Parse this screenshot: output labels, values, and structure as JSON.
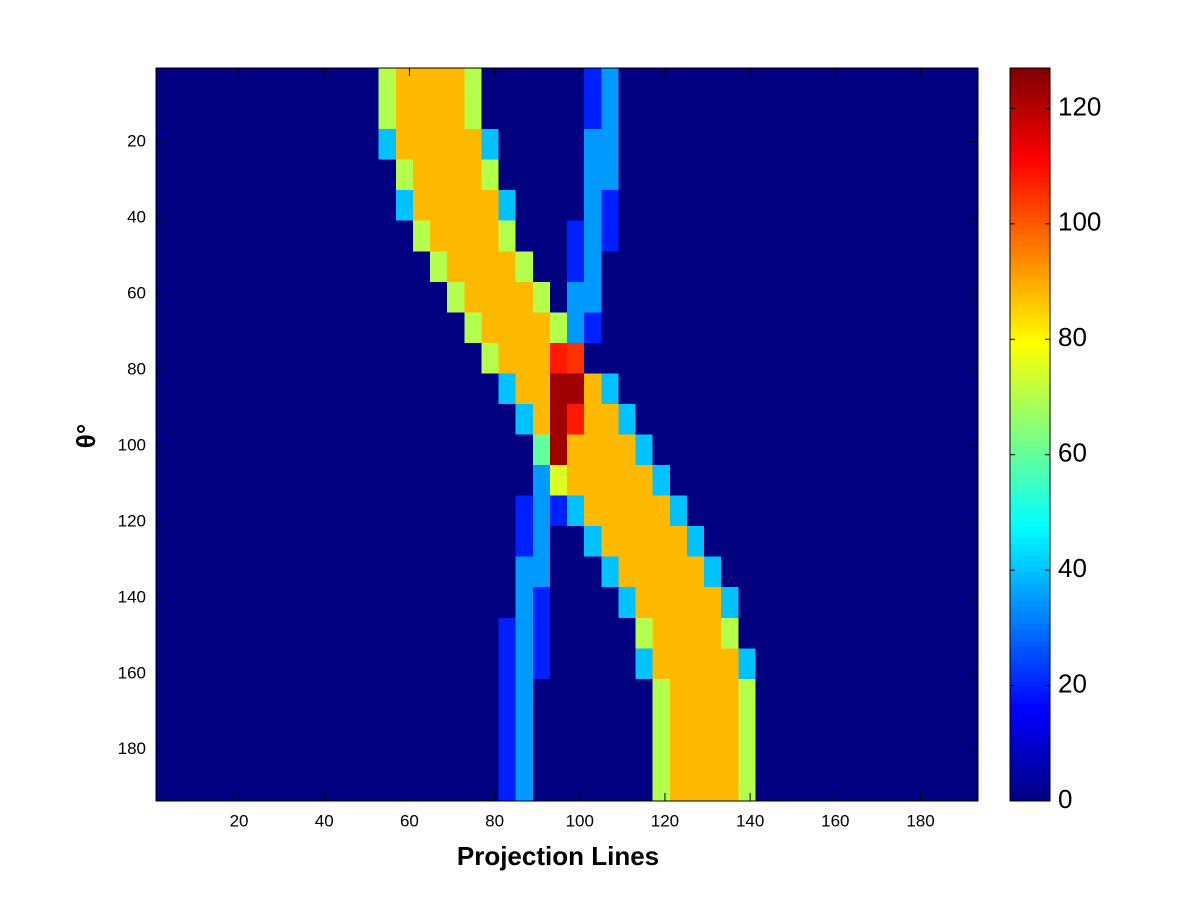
{
  "chart_data": {
    "type": "heatmap",
    "xlabel": "Projection Lines",
    "ylabel": "θ°",
    "colormap": "jet",
    "clim": [
      0,
      127
    ],
    "cticks": [
      0,
      20,
      40,
      60,
      80,
      100,
      120
    ],
    "xlim": [
      0.5,
      193.5
    ],
    "ylim": [
      0.5,
      193.5
    ],
    "y_reversed": true,
    "xticks": [
      20,
      40,
      60,
      80,
      100,
      120,
      140,
      160,
      180
    ],
    "yticks": [
      20,
      40,
      60,
      80,
      100,
      120,
      140,
      160,
      180
    ],
    "values": [
      [
        0,
        0,
        0,
        0,
        0,
        0,
        0,
        0,
        0,
        0,
        0,
        0,
        0,
        70,
        88,
        88,
        88,
        88,
        70,
        0,
        0,
        0,
        0,
        0,
        0,
        20,
        35,
        0,
        0,
        0,
        0,
        0,
        0,
        0,
        0,
        0,
        0,
        0,
        0,
        0,
        0,
        0,
        0,
        0,
        0,
        0,
        0,
        0
      ],
      [
        0,
        0,
        0,
        0,
        0,
        0,
        0,
        0,
        0,
        0,
        0,
        0,
        0,
        70,
        88,
        88,
        88,
        88,
        70,
        0,
        0,
        0,
        0,
        0,
        0,
        20,
        35,
        0,
        0,
        0,
        0,
        0,
        0,
        0,
        0,
        0,
        0,
        0,
        0,
        0,
        0,
        0,
        0,
        0,
        0,
        0,
        0,
        0
      ],
      [
        0,
        0,
        0,
        0,
        0,
        0,
        0,
        0,
        0,
        0,
        0,
        0,
        0,
        40,
        88,
        88,
        88,
        88,
        88,
        40,
        0,
        0,
        0,
        0,
        0,
        35,
        35,
        0,
        0,
        0,
        0,
        0,
        0,
        0,
        0,
        0,
        0,
        0,
        0,
        0,
        0,
        0,
        0,
        0,
        0,
        0,
        0,
        0
      ],
      [
        0,
        0,
        0,
        0,
        0,
        0,
        0,
        0,
        0,
        0,
        0,
        0,
        0,
        0,
        70,
        88,
        88,
        88,
        88,
        70,
        0,
        0,
        0,
        0,
        0,
        35,
        35,
        0,
        0,
        0,
        0,
        0,
        0,
        0,
        0,
        0,
        0,
        0,
        0,
        0,
        0,
        0,
        0,
        0,
        0,
        0,
        0,
        0
      ],
      [
        0,
        0,
        0,
        0,
        0,
        0,
        0,
        0,
        0,
        0,
        0,
        0,
        0,
        0,
        40,
        88,
        88,
        88,
        88,
        88,
        40,
        0,
        0,
        0,
        0,
        35,
        20,
        0,
        0,
        0,
        0,
        0,
        0,
        0,
        0,
        0,
        0,
        0,
        0,
        0,
        0,
        0,
        0,
        0,
        0,
        0,
        0,
        0
      ],
      [
        0,
        0,
        0,
        0,
        0,
        0,
        0,
        0,
        0,
        0,
        0,
        0,
        0,
        0,
        0,
        70,
        88,
        88,
        88,
        88,
        70,
        0,
        0,
        0,
        20,
        35,
        20,
        0,
        0,
        0,
        0,
        0,
        0,
        0,
        0,
        0,
        0,
        0,
        0,
        0,
        0,
        0,
        0,
        0,
        0,
        0,
        0,
        0
      ],
      [
        0,
        0,
        0,
        0,
        0,
        0,
        0,
        0,
        0,
        0,
        0,
        0,
        0,
        0,
        0,
        0,
        70,
        88,
        88,
        88,
        88,
        70,
        0,
        0,
        20,
        35,
        0,
        0,
        0,
        0,
        0,
        0,
        0,
        0,
        0,
        0,
        0,
        0,
        0,
        0,
        0,
        0,
        0,
        0,
        0,
        0,
        0,
        0
      ],
      [
        0,
        0,
        0,
        0,
        0,
        0,
        0,
        0,
        0,
        0,
        0,
        0,
        0,
        0,
        0,
        0,
        0,
        70,
        88,
        88,
        88,
        88,
        70,
        0,
        35,
        35,
        0,
        0,
        0,
        0,
        0,
        0,
        0,
        0,
        0,
        0,
        0,
        0,
        0,
        0,
        0,
        0,
        0,
        0,
        0,
        0,
        0,
        0
      ],
      [
        0,
        0,
        0,
        0,
        0,
        0,
        0,
        0,
        0,
        0,
        0,
        0,
        0,
        0,
        0,
        0,
        0,
        0,
        70,
        88,
        88,
        88,
        88,
        70,
        35,
        20,
        0,
        0,
        0,
        0,
        0,
        0,
        0,
        0,
        0,
        0,
        0,
        0,
        0,
        0,
        0,
        0,
        0,
        0,
        0,
        0,
        0,
        0
      ],
      [
        0,
        0,
        0,
        0,
        0,
        0,
        0,
        0,
        0,
        0,
        0,
        0,
        0,
        0,
        0,
        0,
        0,
        0,
        0,
        70,
        88,
        88,
        88,
        108,
        105,
        0,
        0,
        0,
        0,
        0,
        0,
        0,
        0,
        0,
        0,
        0,
        0,
        0,
        0,
        0,
        0,
        0,
        0,
        0,
        0,
        0,
        0,
        0
      ],
      [
        0,
        0,
        0,
        0,
        0,
        0,
        0,
        0,
        0,
        0,
        0,
        0,
        0,
        0,
        0,
        0,
        0,
        0,
        0,
        0,
        40,
        88,
        88,
        123,
        123,
        88,
        40,
        0,
        0,
        0,
        0,
        0,
        0,
        0,
        0,
        0,
        0,
        0,
        0,
        0,
        0,
        0,
        0,
        0,
        0,
        0,
        0,
        0
      ],
      [
        0,
        0,
        0,
        0,
        0,
        0,
        0,
        0,
        0,
        0,
        0,
        0,
        0,
        0,
        0,
        0,
        0,
        0,
        0,
        0,
        0,
        40,
        88,
        123,
        108,
        88,
        88,
        40,
        0,
        0,
        0,
        0,
        0,
        0,
        0,
        0,
        0,
        0,
        0,
        0,
        0,
        0,
        0,
        0,
        0,
        0,
        0,
        0
      ],
      [
        0,
        0,
        0,
        0,
        0,
        0,
        0,
        0,
        0,
        0,
        0,
        0,
        0,
        0,
        0,
        0,
        0,
        0,
        0,
        0,
        0,
        0,
        60,
        123,
        88,
        88,
        88,
        88,
        40,
        0,
        0,
        0,
        0,
        0,
        0,
        0,
        0,
        0,
        0,
        0,
        0,
        0,
        0,
        0,
        0,
        0,
        0,
        0
      ],
      [
        0,
        0,
        0,
        0,
        0,
        0,
        0,
        0,
        0,
        0,
        0,
        0,
        0,
        0,
        0,
        0,
        0,
        0,
        0,
        0,
        0,
        0,
        35,
        75,
        88,
        88,
        88,
        88,
        88,
        40,
        0,
        0,
        0,
        0,
        0,
        0,
        0,
        0,
        0,
        0,
        0,
        0,
        0,
        0,
        0,
        0,
        0,
        0
      ],
      [
        0,
        0,
        0,
        0,
        0,
        0,
        0,
        0,
        0,
        0,
        0,
        0,
        0,
        0,
        0,
        0,
        0,
        0,
        0,
        0,
        0,
        20,
        35,
        20,
        40,
        88,
        88,
        88,
        88,
        88,
        40,
        0,
        0,
        0,
        0,
        0,
        0,
        0,
        0,
        0,
        0,
        0,
        0,
        0,
        0,
        0,
        0,
        0
      ],
      [
        0,
        0,
        0,
        0,
        0,
        0,
        0,
        0,
        0,
        0,
        0,
        0,
        0,
        0,
        0,
        0,
        0,
        0,
        0,
        0,
        0,
        20,
        35,
        0,
        0,
        40,
        88,
        88,
        88,
        88,
        88,
        40,
        0,
        0,
        0,
        0,
        0,
        0,
        0,
        0,
        0,
        0,
        0,
        0,
        0,
        0,
        0,
        0
      ],
      [
        0,
        0,
        0,
        0,
        0,
        0,
        0,
        0,
        0,
        0,
        0,
        0,
        0,
        0,
        0,
        0,
        0,
        0,
        0,
        0,
        0,
        35,
        35,
        0,
        0,
        0,
        40,
        88,
        88,
        88,
        88,
        88,
        40,
        0,
        0,
        0,
        0,
        0,
        0,
        0,
        0,
        0,
        0,
        0,
        0,
        0,
        0,
        0
      ],
      [
        0,
        0,
        0,
        0,
        0,
        0,
        0,
        0,
        0,
        0,
        0,
        0,
        0,
        0,
        0,
        0,
        0,
        0,
        0,
        0,
        0,
        35,
        20,
        0,
        0,
        0,
        0,
        40,
        88,
        88,
        88,
        88,
        88,
        40,
        0,
        0,
        0,
        0,
        0,
        0,
        0,
        0,
        0,
        0,
        0,
        0,
        0,
        0
      ],
      [
        0,
        0,
        0,
        0,
        0,
        0,
        0,
        0,
        0,
        0,
        0,
        0,
        0,
        0,
        0,
        0,
        0,
        0,
        0,
        0,
        20,
        35,
        20,
        0,
        0,
        0,
        0,
        0,
        70,
        88,
        88,
        88,
        88,
        70,
        0,
        0,
        0,
        0,
        0,
        0,
        0,
        0,
        0,
        0,
        0,
        0,
        0,
        0
      ],
      [
        0,
        0,
        0,
        0,
        0,
        0,
        0,
        0,
        0,
        0,
        0,
        0,
        0,
        0,
        0,
        0,
        0,
        0,
        0,
        0,
        20,
        35,
        20,
        0,
        0,
        0,
        0,
        0,
        40,
        88,
        88,
        88,
        88,
        88,
        40,
        0,
        0,
        0,
        0,
        0,
        0,
        0,
        0,
        0,
        0,
        0,
        0,
        0
      ],
      [
        0,
        0,
        0,
        0,
        0,
        0,
        0,
        0,
        0,
        0,
        0,
        0,
        0,
        0,
        0,
        0,
        0,
        0,
        0,
        0,
        20,
        35,
        0,
        0,
        0,
        0,
        0,
        0,
        0,
        70,
        88,
        88,
        88,
        88,
        70,
        0,
        0,
        0,
        0,
        0,
        0,
        0,
        0,
        0,
        0,
        0,
        0,
        0
      ],
      [
        0,
        0,
        0,
        0,
        0,
        0,
        0,
        0,
        0,
        0,
        0,
        0,
        0,
        0,
        0,
        0,
        0,
        0,
        0,
        0,
        20,
        35,
        0,
        0,
        0,
        0,
        0,
        0,
        0,
        70,
        88,
        88,
        88,
        88,
        70,
        0,
        0,
        0,
        0,
        0,
        0,
        0,
        0,
        0,
        0,
        0,
        0,
        0
      ],
      [
        0,
        0,
        0,
        0,
        0,
        0,
        0,
        0,
        0,
        0,
        0,
        0,
        0,
        0,
        0,
        0,
        0,
        0,
        0,
        0,
        20,
        35,
        0,
        0,
        0,
        0,
        0,
        0,
        0,
        70,
        88,
        88,
        88,
        88,
        70,
        0,
        0,
        0,
        0,
        0,
        0,
        0,
        0,
        0,
        0,
        0,
        0,
        0
      ],
      [
        0,
        0,
        0,
        0,
        0,
        0,
        0,
        0,
        0,
        0,
        0,
        0,
        0,
        0,
        0,
        0,
        0,
        0,
        0,
        0,
        20,
        35,
        0,
        0,
        0,
        0,
        0,
        0,
        0,
        70,
        88,
        88,
        88,
        88,
        70,
        0,
        0,
        0,
        0,
        0,
        0,
        0,
        0,
        0,
        0,
        0,
        0,
        0
      ]
    ]
  }
}
